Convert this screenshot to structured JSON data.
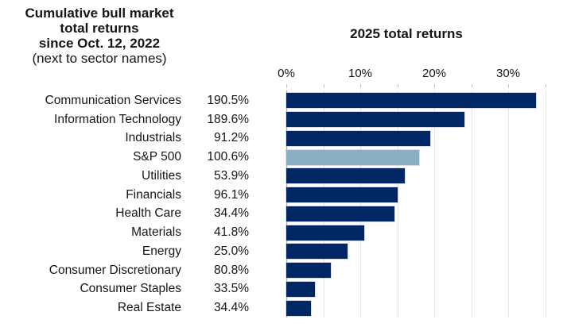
{
  "left_title": {
    "line1": "Cumulative bull market",
    "line2": "total returns",
    "line3": "since Oct. 12, 2022",
    "line4": "(next to sector names)"
  },
  "chart_title": "2025 total returns",
  "colors": {
    "bar_navy": "#002664",
    "bar_highlight": "#8BAFC3",
    "gridline": "#E5E5E5",
    "zero_line": "#A9A9A9",
    "text": "#151515"
  },
  "chart_data": {
    "type": "bar",
    "orientation": "horizontal",
    "title": "2025 total returns",
    "x_axis": {
      "position": "top",
      "tick_labels": [
        "0%",
        "10%",
        "20%",
        "30%"
      ],
      "tick_values": [
        0,
        10,
        20,
        30
      ],
      "minor_gridline_step": 5,
      "range": [
        0,
        35
      ]
    },
    "grid": "vertical",
    "legend": "none",
    "highlight_category": "S&P 500",
    "categories": [
      "Communication Services",
      "Information Technology",
      "Industrials",
      "S&P 500",
      "Utilities",
      "Financials",
      "Health Care",
      "Materials",
      "Energy",
      "Consumer Discretionary",
      "Consumer Staples",
      "Real Estate"
    ],
    "series": [
      {
        "name": "2025 total returns",
        "unit": "%",
        "values": [
          33.8,
          24.1,
          19.5,
          18.0,
          16.0,
          15.0,
          14.6,
          10.5,
          8.3,
          6.0,
          3.9,
          3.3
        ]
      },
      {
        "name": "Cumulative bull market total returns since Oct. 12, 2022",
        "labels": [
          "190.5%",
          "189.6%",
          "91.2%",
          "100.6%",
          "53.9%",
          "96.1%",
          "34.4%",
          "41.8%",
          "25.0%",
          "80.8%",
          "33.5%",
          "34.4%"
        ]
      }
    ]
  }
}
